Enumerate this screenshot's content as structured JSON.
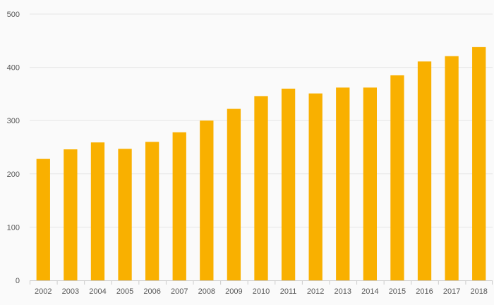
{
  "chart_data": {
    "type": "bar",
    "title": "",
    "xlabel": "",
    "ylabel": "",
    "categories": [
      "2002",
      "2003",
      "2004",
      "2005",
      "2006",
      "2007",
      "2008",
      "2009",
      "2010",
      "2011",
      "2012",
      "2013",
      "2014",
      "2015",
      "2016",
      "2017",
      "2018"
    ],
    "values": [
      228,
      246,
      259,
      247,
      260,
      278,
      300,
      322,
      346,
      360,
      351,
      362,
      362,
      385,
      411,
      421,
      438
    ],
    "ylim": [
      0,
      500
    ],
    "yticks": [
      "0",
      "100",
      "200",
      "300",
      "400",
      "500"
    ],
    "grid": true,
    "legend": "none",
    "colors": {
      "bar": "#f9b000",
      "grid": "#e6e6e6",
      "axis": "#cccccc",
      "background": "#fafafa"
    }
  }
}
